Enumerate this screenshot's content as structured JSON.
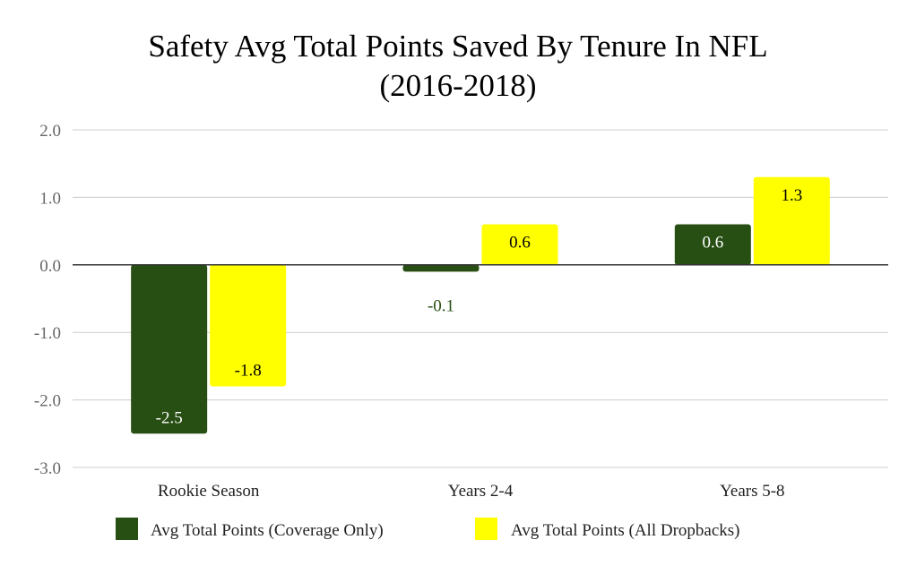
{
  "chart_data": {
    "type": "bar",
    "title_lines": [
      "Safety Avg Total Points Saved By Tenure In NFL",
      "(2016-2018)"
    ],
    "categories": [
      "Rookie Season",
      "Years 2-4",
      "Years 5-8"
    ],
    "series": [
      {
        "name": "Avg Total Points (Coverage Only)",
        "color": "#274e13",
        "values": [
          -2.5,
          -0.1,
          0.6
        ],
        "labels": [
          "-2.5",
          "-0.1",
          "0.6"
        ]
      },
      {
        "name": "Avg Total Points (All Dropbacks)",
        "color": "#ffff00",
        "values": [
          -1.8,
          0.6,
          1.3
        ],
        "labels": [
          "-1.8",
          "0.6",
          "1.3"
        ]
      }
    ],
    "ylim": [
      -3,
      2
    ],
    "yticks": [
      2,
      1,
      0,
      -1,
      -2,
      -3
    ],
    "ytick_labels": [
      "2.0",
      "1.0",
      "0.0",
      "-1.0",
      "-2.0",
      "-3.0"
    ],
    "grid": true,
    "legend_position": "bottom"
  }
}
